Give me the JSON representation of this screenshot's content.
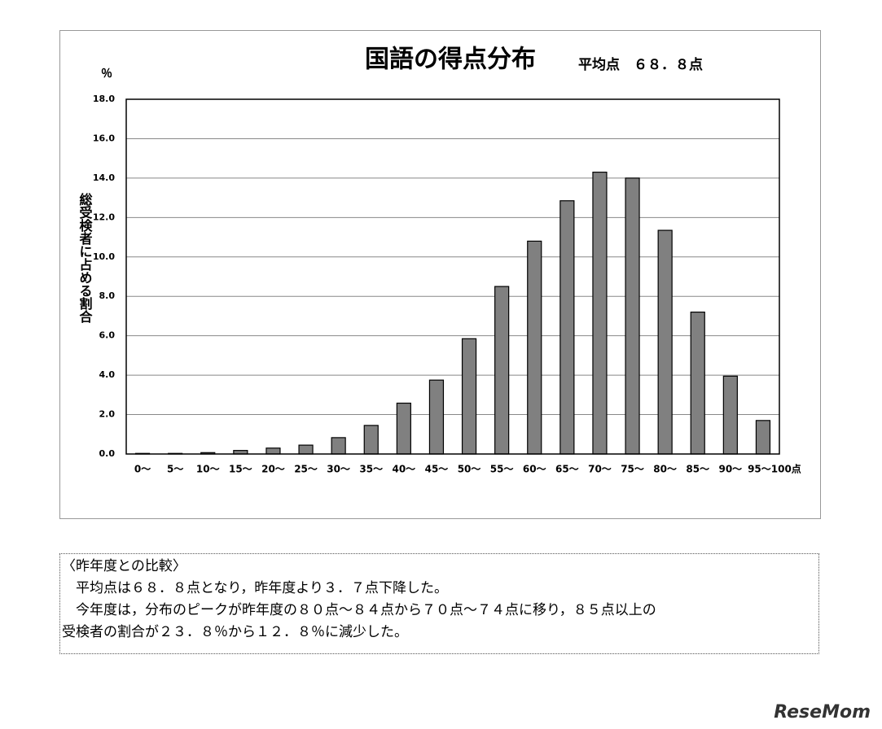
{
  "chart_data": {
    "type": "bar",
    "title": "国語の得点分布",
    "subtitle": "平均点　６８．８点",
    "y_unit": "％",
    "y_label": "総受検者に占める割合",
    "categories": [
      "0～",
      "5～",
      "10～",
      "15～",
      "20～",
      "25～",
      "30～",
      "35～",
      "40～",
      "45～",
      "50～",
      "55～",
      "60～",
      "65～",
      "70～",
      "75～",
      "80～",
      "85～",
      "90～",
      "95～100点"
    ],
    "values": [
      0.03,
      0.03,
      0.07,
      0.18,
      0.3,
      0.45,
      0.83,
      1.45,
      2.58,
      3.75,
      5.85,
      8.5,
      10.8,
      12.85,
      14.3,
      14.0,
      11.35,
      7.2,
      3.95,
      1.7
    ],
    "color": "#808080",
    "ylim": [
      0,
      18
    ],
    "yticks": [
      {
        "value": 0,
        "label": "0.0"
      },
      {
        "value": 2,
        "label": "2.0"
      },
      {
        "value": 4,
        "label": "4.0"
      },
      {
        "value": 6,
        "label": "6.0"
      },
      {
        "value": 8,
        "label": "8.0"
      },
      {
        "value": 10,
        "label": "10.0"
      },
      {
        "value": 12,
        "label": "12.0"
      },
      {
        "value": 14,
        "label": "14.0"
      },
      {
        "value": 16,
        "label": "16.0"
      },
      {
        "value": 18,
        "label": "18.0"
      }
    ],
    "grid": true
  },
  "comparison": {
    "heading": "〈昨年度との比較〉",
    "lines": [
      "　平均点は６８．８点となり，昨年度より３．７点下降した。",
      "　今年度は，分布のピークが昨年度の８０点～８４点から７０点～７４点に移り，８５点以上の",
      "受検者の割合が２３．８％から１２．８％に減少した。"
    ]
  },
  "watermark": "ReseMom"
}
